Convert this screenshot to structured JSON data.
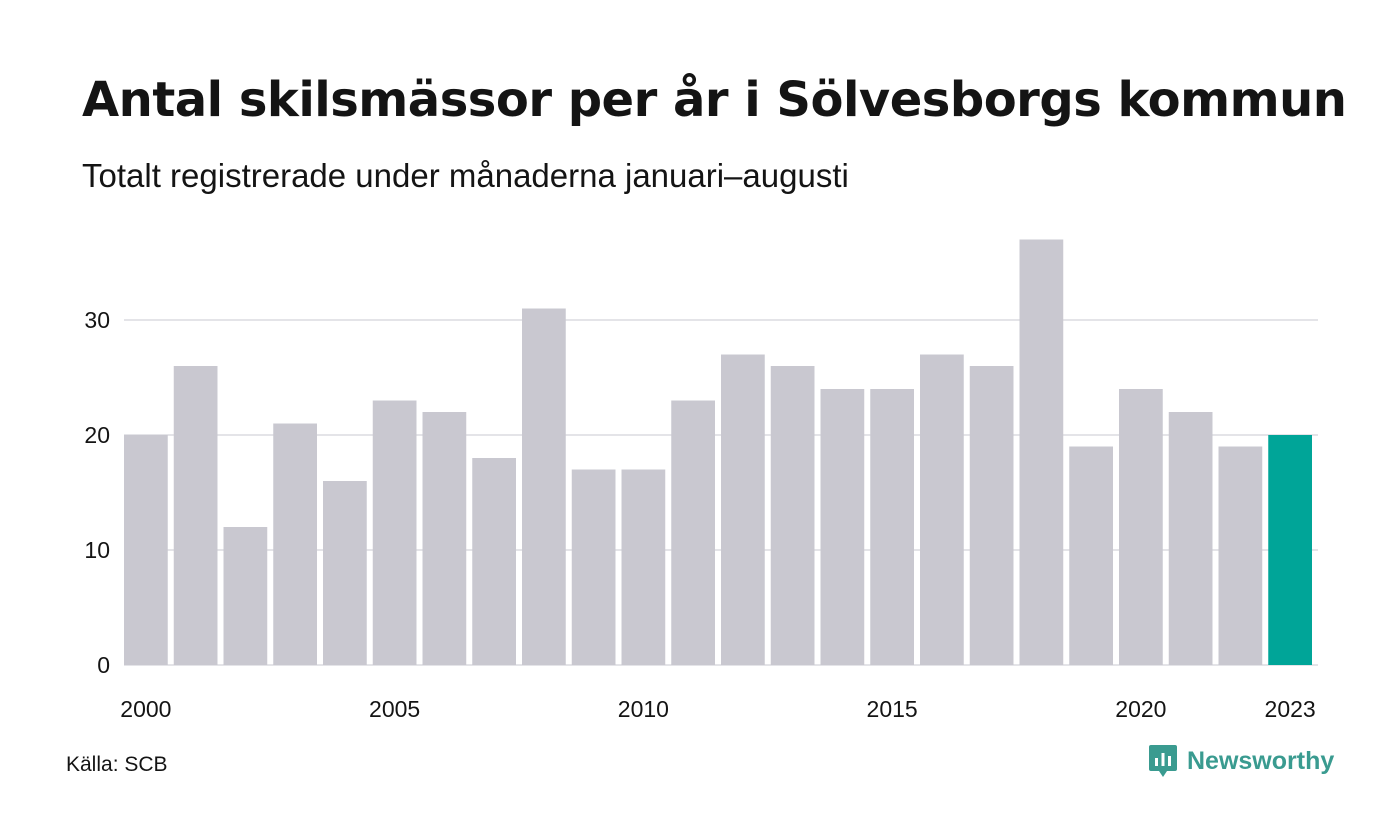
{
  "header": {
    "title": "Antal skilsmässor per år i Sölvesborgs kommun",
    "subtitle": "Totalt registrerade under månaderna januari–augusti"
  },
  "footer": {
    "source": "Källa: SCB",
    "brand": "Newsworthy"
  },
  "colors": {
    "bar": "#c9c8d0",
    "highlight": "#00a598",
    "grid": "#e4e4e8",
    "brand": "#3a9b90"
  },
  "icons": {
    "brand_logo": "newsworthy-logo-icon"
  },
  "chart_data": {
    "type": "bar",
    "title": "Antal skilsmässor per år i Sölvesborgs kommun",
    "subtitle": "Totalt registrerade under månaderna januari–augusti",
    "categories": [
      2000,
      2001,
      2002,
      2003,
      2004,
      2005,
      2006,
      2007,
      2008,
      2009,
      2010,
      2011,
      2012,
      2013,
      2014,
      2015,
      2016,
      2017,
      2018,
      2019,
      2020,
      2021,
      2022,
      2023
    ],
    "values": [
      20,
      26,
      12,
      21,
      16,
      23,
      22,
      18,
      31,
      17,
      17,
      23,
      27,
      26,
      24,
      24,
      27,
      26,
      37,
      19,
      24,
      22,
      19,
      20
    ],
    "highlight": [
      2023
    ],
    "x_tick_labels": [
      "2000",
      "2005",
      "2010",
      "2015",
      "2020",
      "2023"
    ],
    "y_ticks": [
      0,
      10,
      20,
      30
    ],
    "ylim": [
      0,
      37
    ],
    "xlabel": "",
    "ylabel": "",
    "grid": true,
    "legend": "none"
  }
}
